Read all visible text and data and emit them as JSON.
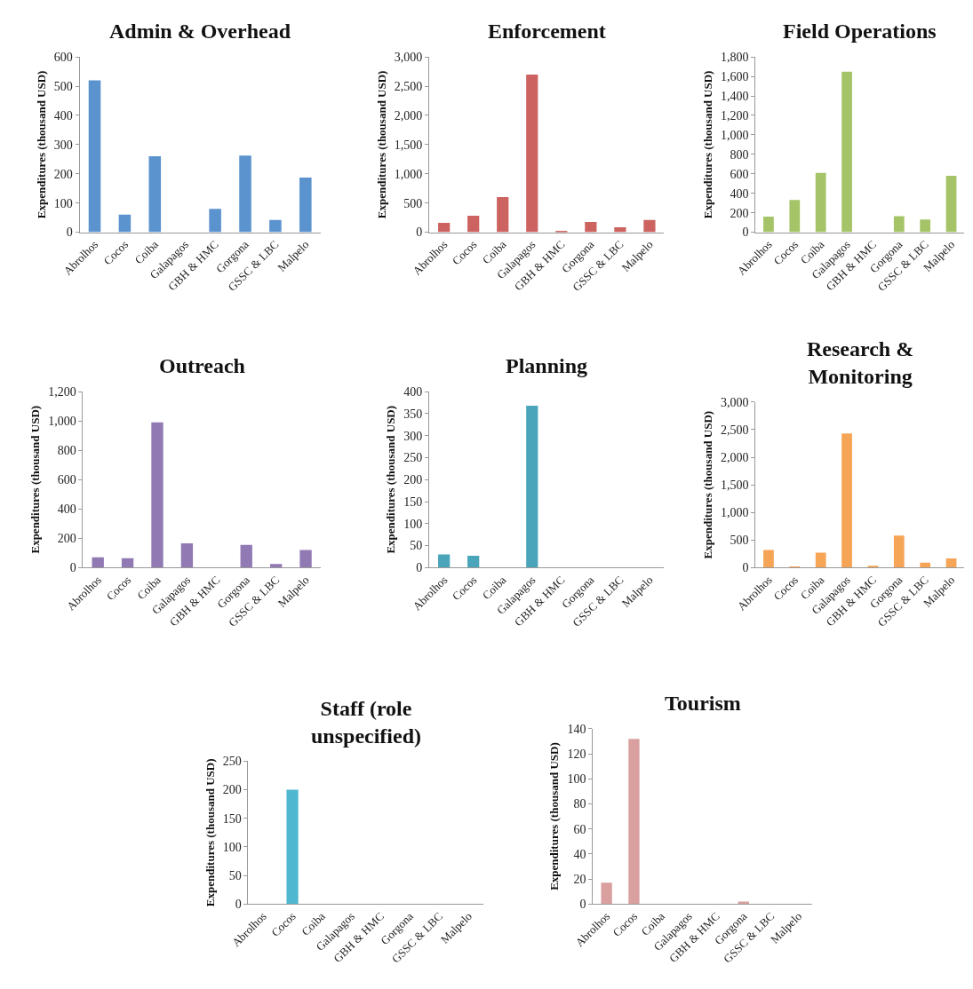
{
  "chart_data": [
    {
      "type": "bar",
      "title": "Admin & Overhead",
      "ylabel": "Expenditures (thousand USD)",
      "categories": [
        "Abrolhos",
        "Cocos",
        "Coiba",
        "Galapagos",
        "GBH & HMC",
        "Gorgona",
        "GSSC & LBC",
        "Malpelo"
      ],
      "values": [
        520,
        60,
        260,
        0,
        80,
        262,
        42,
        187
      ],
      "color": "#5b93cf",
      "ylim": [
        0,
        600
      ],
      "yticks": [
        0,
        100,
        200,
        300,
        400,
        500,
        600
      ],
      "grid": false
    },
    {
      "type": "bar",
      "title": "Enforcement",
      "ylabel": "Expenditures (thousand USD)",
      "categories": [
        "Abrolhos",
        "Cocos",
        "Coiba",
        "Galapagos",
        "GBH & HMC",
        "Gorgona",
        "GSSC & LBC",
        "Malpelo"
      ],
      "values": [
        160,
        280,
        600,
        2700,
        25,
        175,
        85,
        210
      ],
      "color": "#cc6360",
      "ylim": [
        0,
        3000
      ],
      "yticks": [
        0,
        {
          "value": 500,
          "label": "500"
        },
        {
          "value": 1000,
          "label": "1,000"
        },
        {
          "value": 1500,
          "label": "1,500"
        },
        {
          "value": 2000,
          "label": "2,000"
        },
        {
          "value": 2500,
          "label": "2,500"
        },
        {
          "value": 3000,
          "label": "3,000"
        }
      ],
      "grid": false
    },
    {
      "type": "bar",
      "title": "Field Operations",
      "ylabel": "Expenditures (thousand USD)",
      "categories": [
        "Abrolhos",
        "Cocos",
        "Coiba",
        "Galapagos",
        "GBH & HMC",
        "Gorgona",
        "GSSC & LBC",
        "Malpelo"
      ],
      "values": [
        160,
        330,
        610,
        1650,
        0,
        165,
        130,
        580
      ],
      "color": "#a5c467",
      "ylim": [
        0,
        1800
      ],
      "yticks": [
        0,
        200,
        400,
        600,
        800,
        {
          "value": 1000,
          "label": "1,000"
        },
        {
          "value": 1200,
          "label": "1,200"
        },
        {
          "value": 1400,
          "label": "1,400"
        },
        {
          "value": 1600,
          "label": "1,600"
        },
        {
          "value": 1800,
          "label": "1,800"
        }
      ],
      "grid": false
    },
    {
      "type": "bar",
      "title": "Outreach",
      "ylabel": "Expenditures (thousand USD)",
      "categories": [
        "Abrolhos",
        "Cocos",
        "Coiba",
        "Galapagos",
        "GBH & HMC",
        "Gorgona",
        "GSSC & LBC",
        "Malpelo"
      ],
      "values": [
        70,
        65,
        990,
        165,
        0,
        155,
        25,
        120
      ],
      "color": "#9179b4",
      "ylim": [
        0,
        1200
      ],
      "yticks": [
        0,
        200,
        400,
        600,
        800,
        {
          "value": 1000,
          "label": "1,000"
        },
        {
          "value": 1200,
          "label": "1,200"
        }
      ],
      "grid": false
    },
    {
      "type": "bar",
      "title": "Planning",
      "ylabel": "Expenditures (thousand USD)",
      "categories": [
        "Abrolhos",
        "Cocos",
        "Coiba",
        "Galapagos",
        "GBH & HMC",
        "Gorgona",
        "GSSC & LBC",
        "Malpelo"
      ],
      "values": [
        30,
        27,
        0,
        368,
        0,
        0,
        0,
        0
      ],
      "color": "#4aa5bb",
      "ylim": [
        0,
        400
      ],
      "yticks": [
        0,
        50,
        100,
        150,
        200,
        250,
        300,
        350,
        400
      ],
      "grid": false
    },
    {
      "type": "bar",
      "title": "Research &\nMonitoring",
      "ylabel": "Expenditures (thousand USD)",
      "categories": [
        "Abrolhos",
        "Cocos",
        "Coiba",
        "Galapagos",
        "GBH & HMC",
        "Gorgona",
        "GSSC & LBC",
        "Malpelo"
      ],
      "values": [
        320,
        10,
        270,
        2430,
        35,
        580,
        90,
        165
      ],
      "color": "#f6a455",
      "ylim": [
        0,
        3000
      ],
      "yticks": [
        0,
        {
          "value": 500,
          "label": "500"
        },
        {
          "value": 1000,
          "label": "1,000"
        },
        {
          "value": 1500,
          "label": "1,500"
        },
        {
          "value": 2000,
          "label": "2,000"
        },
        {
          "value": 2500,
          "label": "2,500"
        },
        {
          "value": 3000,
          "label": "3,000"
        }
      ],
      "grid": false
    },
    {
      "type": "bar",
      "title": "Staff (role\nunspecified)",
      "ylabel": "Expenditures (thousand USD)",
      "categories": [
        "Abrolhos",
        "Cocos",
        "Coiba",
        "Galapagos",
        "GBH & HMC",
        "Gorgona",
        "GSSC & LBC",
        "Malpelo"
      ],
      "values": [
        0,
        200,
        0,
        0,
        0,
        0,
        0,
        0
      ],
      "color": "#4fb8d0",
      "ylim": [
        0,
        250
      ],
      "yticks": [
        0,
        50,
        100,
        150,
        200,
        250
      ],
      "grid": false
    },
    {
      "type": "bar",
      "title": "Tourism",
      "ylabel": "Expenditures (thousand USD)",
      "categories": [
        "Abrolhos",
        "Cocos",
        "Coiba",
        "Galapagos",
        "GBH & HMC",
        "Gorgona",
        "GSSC & LBC",
        "Malpelo"
      ],
      "values": [
        17,
        132,
        0,
        0,
        0,
        2,
        0,
        0
      ],
      "color": "#d9a09f",
      "ylim": [
        0,
        140
      ],
      "yticks": [
        0,
        20,
        40,
        60,
        80,
        100,
        120,
        140
      ],
      "grid": false
    }
  ]
}
